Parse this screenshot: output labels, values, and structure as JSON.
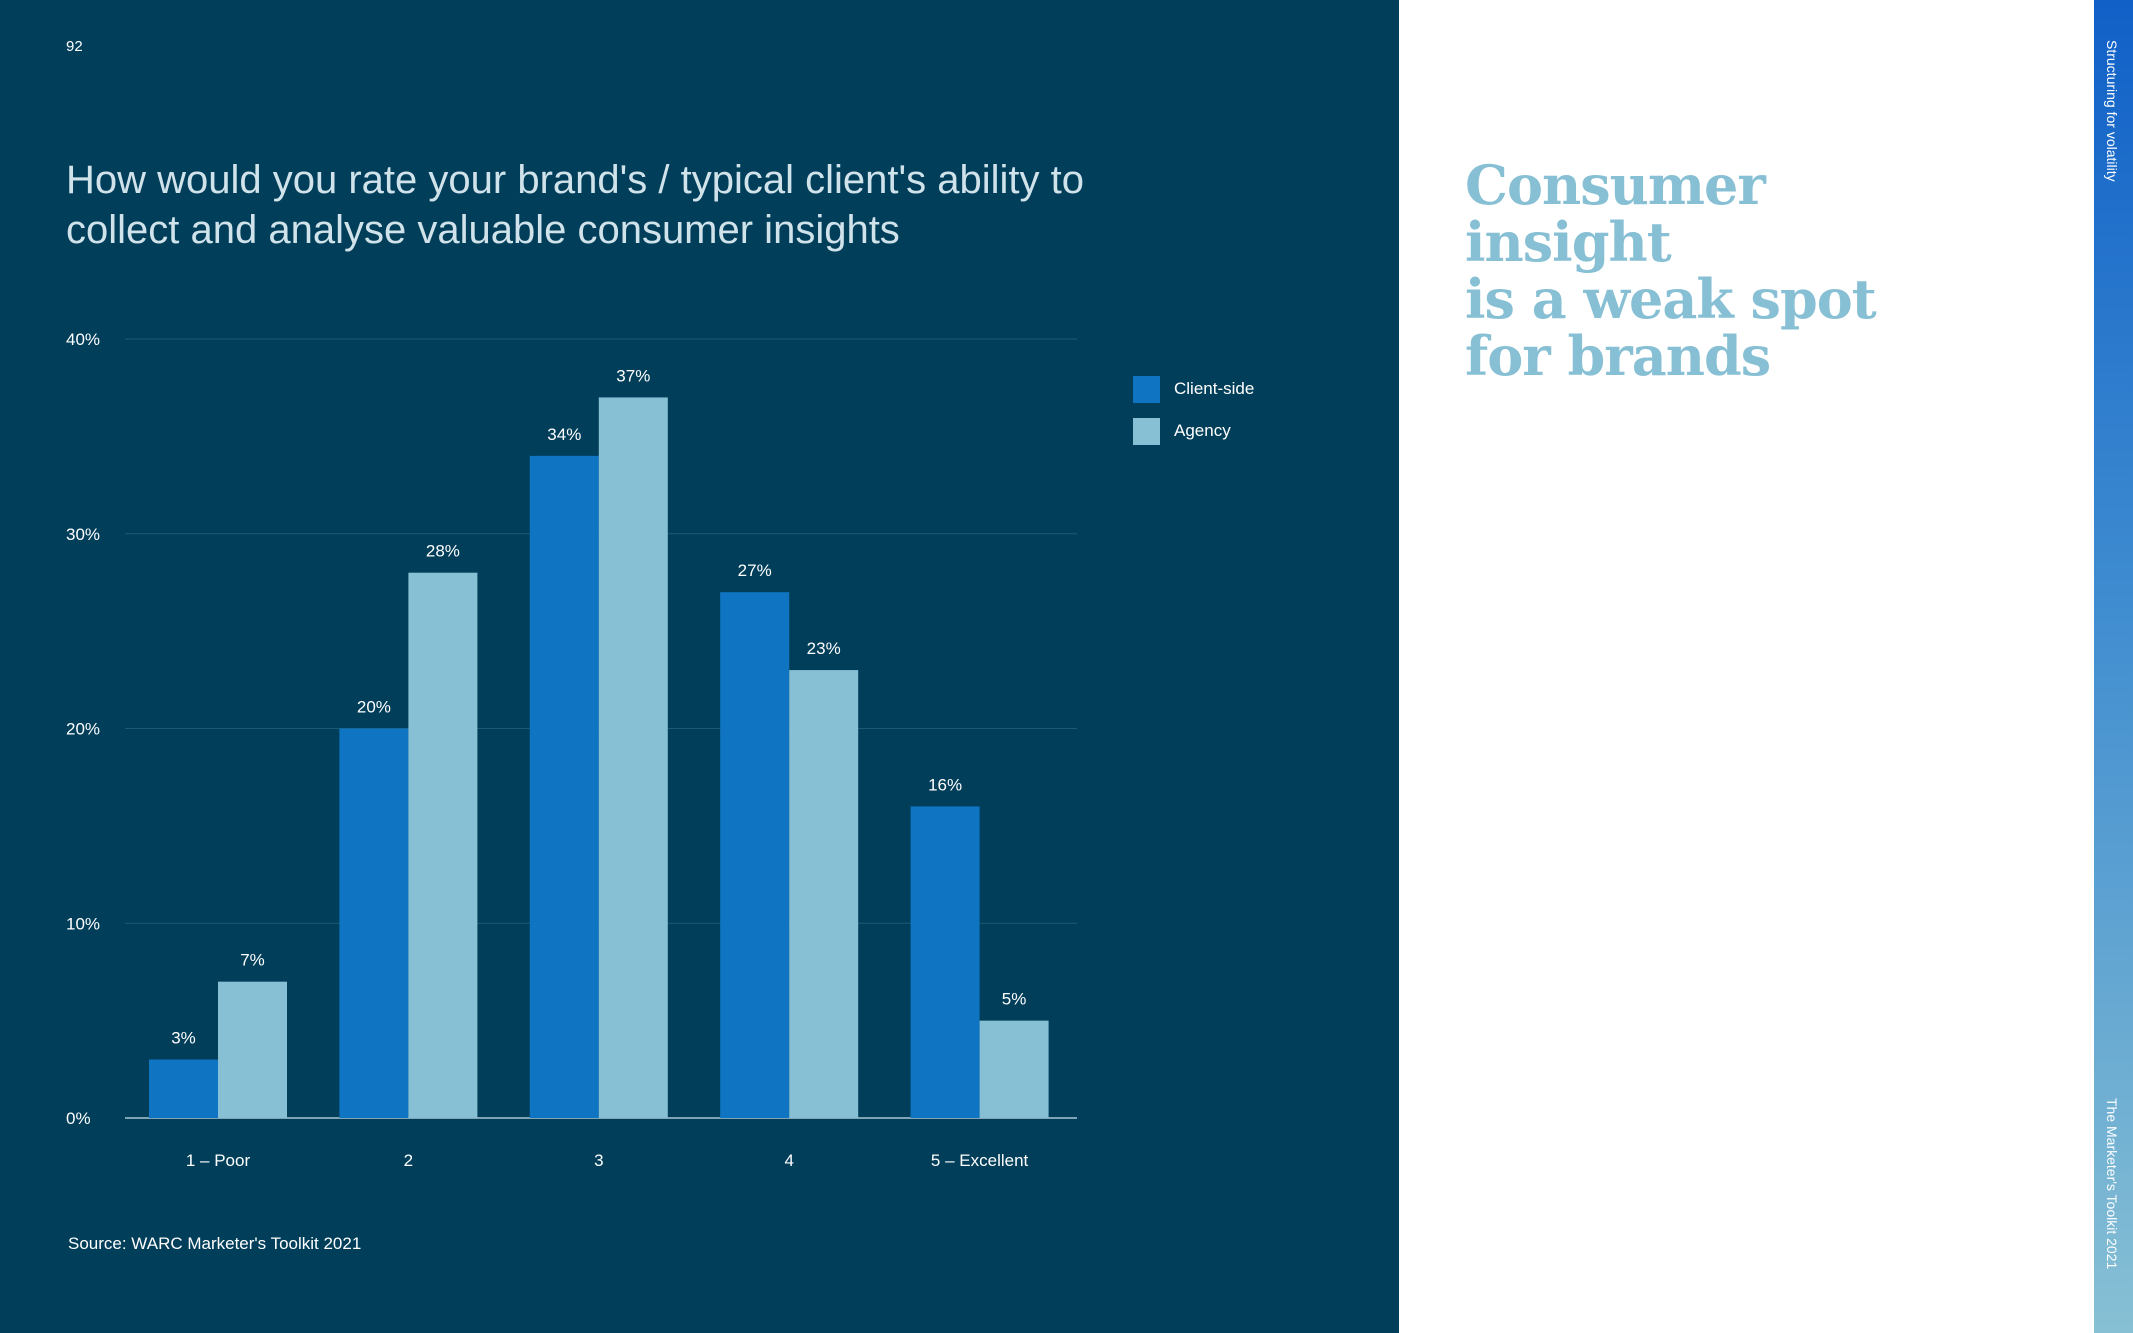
{
  "page_number": "92",
  "side_labels": {
    "top": "Structuring for volatility",
    "bottom": "The Marketer's Toolkit 2021"
  },
  "headline": {
    "line1": "Consumer insight",
    "line2": "is a weak spot",
    "line3": "for brands"
  },
  "source": "Source: WARC Marketer's Toolkit 2021",
  "colors": {
    "background": "#013e5a",
    "client_side": "#0f75c3",
    "agency": "#87c0d4",
    "headline": "#87c0d4"
  },
  "chart_data": {
    "type": "bar",
    "title": "How would you rate your brand's / typical client's ability to collect and analyse valuable consumer insights",
    "categories": [
      "1 – Poor",
      "2",
      "3",
      "4",
      "5 – Excellent"
    ],
    "series": [
      {
        "name": "Client-side",
        "values": [
          3,
          20,
          34,
          27,
          16
        ],
        "color": "#0f75c3"
      },
      {
        "name": "Agency",
        "values": [
          7,
          28,
          37,
          23,
          5
        ],
        "color": "#87c0d4"
      }
    ],
    "ylim": [
      0,
      40
    ],
    "yticks": [
      0,
      10,
      20,
      30,
      40
    ],
    "ytick_labels": [
      "0%",
      "10%",
      "20%",
      "30%",
      "40%"
    ],
    "value_suffix": "%",
    "grid": true,
    "legend_position": "right"
  }
}
